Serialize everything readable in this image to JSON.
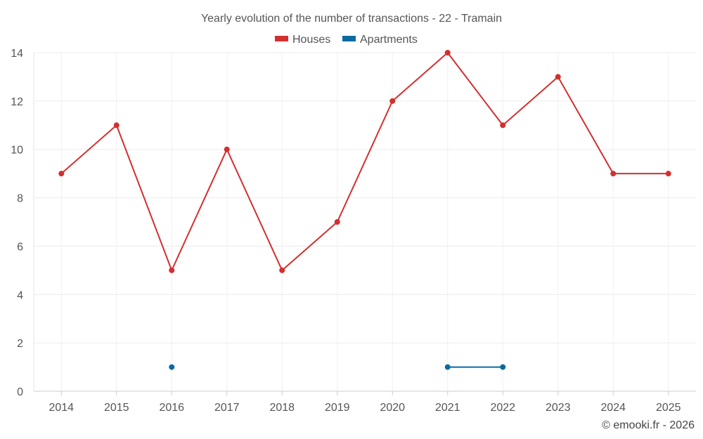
{
  "chart_data": {
    "type": "line",
    "title": "Yearly evolution of the number of transactions - 22 - Tramain",
    "xlabel": "",
    "ylabel": "",
    "categories": [
      "2014",
      "2015",
      "2016",
      "2017",
      "2018",
      "2019",
      "2020",
      "2021",
      "2022",
      "2023",
      "2024",
      "2025"
    ],
    "ylim": [
      0,
      14
    ],
    "yticks": [
      0,
      2,
      4,
      6,
      8,
      10,
      12,
      14
    ],
    "grid": true,
    "legend_position": "top-center",
    "series": [
      {
        "name": "Houses",
        "color": "#d32f2f",
        "values": [
          9,
          11,
          5,
          10,
          5,
          7,
          12,
          14,
          11,
          13,
          9,
          9
        ]
      },
      {
        "name": "Apartments",
        "color": "#0b6aa2",
        "values": [
          null,
          null,
          1,
          null,
          null,
          null,
          null,
          1,
          1,
          null,
          null,
          null
        ]
      }
    ]
  },
  "credit": "© emooki.fr - 2026"
}
